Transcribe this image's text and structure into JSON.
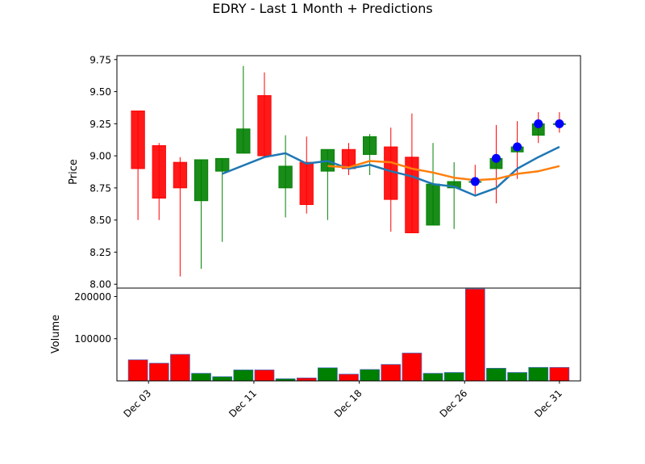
{
  "chart_data": {
    "type": "candlestick",
    "title": "EDRY - Last 1 Month + Predictions",
    "price_panel": {
      "ylabel": "Price",
      "ylim": [
        7.97,
        9.78
      ],
      "yticks": [
        "8.00",
        "8.25",
        "8.50",
        "8.75",
        "9.00",
        "9.25",
        "9.50",
        "9.75"
      ],
      "ytick_values": [
        8.0,
        8.25,
        8.5,
        8.75,
        9.0,
        9.25,
        9.5,
        9.75
      ],
      "candles": [
        {
          "day": 2,
          "open": 9.35,
          "close": 8.9,
          "high": 9.35,
          "low": 8.5
        },
        {
          "day": 3,
          "open": 9.08,
          "close": 8.67,
          "high": 9.1,
          "low": 8.5
        },
        {
          "day": 4,
          "open": 8.95,
          "close": 8.75,
          "high": 8.99,
          "low": 8.06
        },
        {
          "day": 5,
          "open": 8.65,
          "close": 8.97,
          "high": 8.97,
          "low": 8.12
        },
        {
          "day": 6,
          "open": 8.88,
          "close": 8.98,
          "high": 8.98,
          "low": 8.33
        },
        {
          "day": 7,
          "open": 9.02,
          "close": 9.21,
          "high": 9.7,
          "low": 9.02
        },
        {
          "day": 8,
          "open": 9.47,
          "close": 9.0,
          "high": 9.65,
          "low": 9.0
        },
        {
          "day": 9,
          "open": 8.75,
          "close": 8.92,
          "high": 9.16,
          "low": 8.52
        },
        {
          "day": 10,
          "open": 8.95,
          "close": 8.62,
          "high": 9.15,
          "low": 8.55
        },
        {
          "day": 11,
          "open": 8.88,
          "close": 9.05,
          "high": 9.05,
          "low": 8.5
        },
        {
          "day": 12,
          "open": 9.05,
          "close": 8.9,
          "high": 9.1,
          "low": 8.85
        },
        {
          "day": 13,
          "open": 9.01,
          "close": 9.15,
          "high": 9.17,
          "low": 8.85
        },
        {
          "day": 14,
          "open": 9.07,
          "close": 8.66,
          "high": 9.22,
          "low": 8.41
        },
        {
          "day": 15,
          "open": 8.99,
          "close": 8.4,
          "high": 9.33,
          "low": 8.4
        },
        {
          "day": 16,
          "open": 8.46,
          "close": 8.78,
          "high": 9.1,
          "low": 8.46
        },
        {
          "day": 17,
          "open": 8.75,
          "close": 8.8,
          "high": 8.95,
          "low": 8.43
        }
      ],
      "up_color": "#008000",
      "down_color": "#ff0000",
      "moving_averages": [
        {
          "color": "#1f77b4",
          "x": [
            6,
            8,
            9,
            10,
            11,
            12,
            13,
            14,
            15,
            16,
            17,
            18,
            19,
            20,
            21,
            22
          ],
          "y": [
            8.86,
            8.99,
            9.02,
            8.94,
            8.96,
            8.9,
            8.93,
            8.88,
            8.84,
            8.78,
            8.76,
            8.69,
            8.75,
            8.9,
            8.99,
            9.07
          ]
        },
        {
          "color": "#ff7f0e",
          "x": [
            11,
            12,
            13,
            14,
            15,
            16,
            17,
            18,
            19,
            20,
            21,
            22
          ],
          "y": [
            8.92,
            8.91,
            8.96,
            8.95,
            8.9,
            8.87,
            8.83,
            8.81,
            8.82,
            8.86,
            8.88,
            8.92
          ]
        }
      ],
      "predictions": {
        "color": "#0000ff",
        "candle_color": "#008000",
        "points": [
          {
            "day": 18,
            "value": 8.8,
            "open": 8.8,
            "high": 8.93,
            "low": 8.7
          },
          {
            "day": 19,
            "value": 8.98,
            "open": 8.9,
            "high": 9.24,
            "low": 8.63
          },
          {
            "day": 20,
            "value": 9.07,
            "open": 9.03,
            "high": 9.27,
            "low": 8.82
          },
          {
            "day": 21,
            "value": 9.25,
            "open": 9.16,
            "high": 9.34,
            "low": 9.1
          },
          {
            "day": 22,
            "value": 9.25,
            "open": 9.25,
            "high": 9.34,
            "low": 9.18
          }
        ]
      }
    },
    "volume_panel": {
      "ylabel": "Volume",
      "ylim": [
        0,
        220000
      ],
      "yticks": [
        "100000",
        "200000"
      ],
      "ytick_values": [
        100000,
        200000
      ],
      "bars": [
        {
          "day": 2,
          "value": 50000,
          "color": "#ff0000"
        },
        {
          "day": 3,
          "value": 42000,
          "color": "#ff0000"
        },
        {
          "day": 4,
          "value": 63000,
          "color": "#ff0000"
        },
        {
          "day": 5,
          "value": 18000,
          "color": "#008000"
        },
        {
          "day": 6,
          "value": 10000,
          "color": "#008000"
        },
        {
          "day": 7,
          "value": 26000,
          "color": "#008000"
        },
        {
          "day": 8,
          "value": 26000,
          "color": "#ff0000"
        },
        {
          "day": 9,
          "value": 5000,
          "color": "#008000"
        },
        {
          "day": 10,
          "value": 7000,
          "color": "#ff0000"
        },
        {
          "day": 11,
          "value": 31000,
          "color": "#008000"
        },
        {
          "day": 12,
          "value": 16000,
          "color": "#ff0000"
        },
        {
          "day": 13,
          "value": 27000,
          "color": "#008000"
        },
        {
          "day": 14,
          "value": 39000,
          "color": "#ff0000"
        },
        {
          "day": 15,
          "value": 66000,
          "color": "#ff0000"
        },
        {
          "day": 16,
          "value": 18000,
          "color": "#008000"
        },
        {
          "day": 17,
          "value": 20000,
          "color": "#008000"
        },
        {
          "day": 18,
          "value": 218000,
          "color": "#ff0000"
        },
        {
          "day": 19,
          "value": 30000,
          "color": "#008000"
        },
        {
          "day": 20,
          "value": 20000,
          "color": "#008000"
        },
        {
          "day": 21,
          "value": 32000,
          "color": "#008000"
        },
        {
          "day": 22,
          "value": 32000,
          "color": "#ff0000"
        }
      ]
    },
    "x_axis": {
      "xlim": [
        1.0,
        23.0
      ],
      "ticks": [
        {
          "label": "Dec 03",
          "day": 2.5
        },
        {
          "label": "Dec 11",
          "day": 7.5
        },
        {
          "label": "Dec 18",
          "day": 12.5
        },
        {
          "label": "Dec 26",
          "day": 17.5
        },
        {
          "label": "Dec 31",
          "day": 22.0
        }
      ]
    }
  }
}
